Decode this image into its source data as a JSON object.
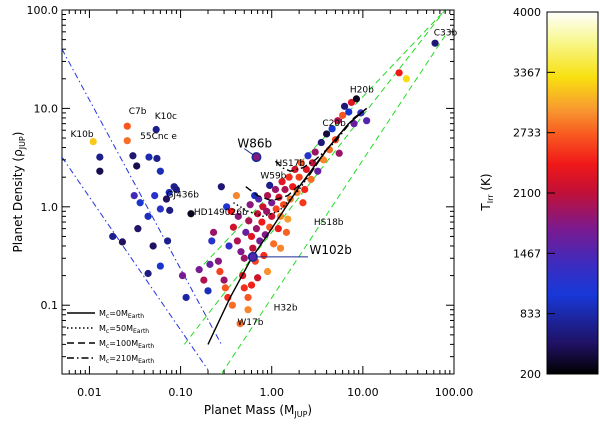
{
  "chart_data": {
    "type": "scatter",
    "xlabel": "Planet Mass (M",
    "xlabel_sub": "JUP",
    "xlabel_close": ")",
    "ylabel": "Planet Density (ρ",
    "ylabel_sub": "JUP",
    "ylabel_close": ")",
    "x_scale": "log",
    "y_scale": "log",
    "xlim": [
      0.005,
      100
    ],
    "ylim": [
      0.02,
      100
    ],
    "x_ticks": [
      {
        "v": 0.01,
        "label": "0.01"
      },
      {
        "v": 0.1,
        "label": "0.10"
      },
      {
        "v": 1,
        "label": "1.00"
      },
      {
        "v": 10,
        "label": "10.00"
      },
      {
        "v": 100,
        "label": "100.00"
      }
    ],
    "y_ticks": [
      {
        "v": 0.1,
        "label": "0.1"
      },
      {
        "v": 1,
        "label": "1.0"
      },
      {
        "v": 10,
        "label": "10.0"
      },
      {
        "v": 100,
        "label": "100.0"
      }
    ],
    "grid": false,
    "colorbar": {
      "label": "T",
      "label_sub": "Irr",
      "label_unit": "(K)",
      "range": [
        200,
        4000
      ],
      "ticks": [
        "200",
        "833",
        "1467",
        "2100",
        "2733",
        "3367",
        "4000"
      ]
    },
    "legend": {
      "position": "bottom-left",
      "entries": [
        {
          "text": "M",
          "sub": "c",
          "rest": "=0M",
          "sub2": "Earth",
          "style": "solid"
        },
        {
          "text": "M",
          "sub": "c",
          "rest": "=50M",
          "sub2": "Earth",
          "style": "dotted"
        },
        {
          "text": "M",
          "sub": "c",
          "rest": "=100M",
          "sub2": "Earth",
          "style": "dashed"
        },
        {
          "text": "M",
          "sub": "c",
          "rest": "=210M",
          "sub2": "Earth",
          "style": "dashdot"
        }
      ]
    },
    "annotations": [
      {
        "text": "C33b",
        "x": 60,
        "y": 55
      },
      {
        "text": "H20b",
        "x": 7.2,
        "y": 14.5
      },
      {
        "text": "C20b",
        "x": 3.6,
        "y": 6.6
      },
      {
        "text": "C7b",
        "x": 0.027,
        "y": 8.8
      },
      {
        "text": "K10c",
        "x": 0.052,
        "y": 7.8
      },
      {
        "text": "55Cnc e",
        "x": 0.036,
        "y": 4.9
      },
      {
        "text": "K10b",
        "x": 0.0062,
        "y": 5.1
      },
      {
        "text": "W86b",
        "x": 0.42,
        "y": 4.0,
        "big": true
      },
      {
        "text": "HS17b",
        "x": 1.1,
        "y": 2.6
      },
      {
        "text": "W59b",
        "x": 0.75,
        "y": 1.95
      },
      {
        "text": "GJ436b",
        "x": 0.07,
        "y": 1.25
      },
      {
        "text": "HD149026b",
        "x": 0.14,
        "y": 0.83
      },
      {
        "text": "HS18b",
        "x": 2.9,
        "y": 0.65
      },
      {
        "text": "W102b",
        "x": 2.6,
        "y": 0.33,
        "big": true
      },
      {
        "text": "H32b",
        "x": 1.05,
        "y": 0.088
      },
      {
        "text": "W17b",
        "x": 0.42,
        "y": 0.063
      }
    ],
    "guide_lines": [
      {
        "style": "blue-dashdot",
        "points": [
          [
            0.005,
            40
          ],
          [
            0.28,
            0.04
          ]
        ]
      },
      {
        "style": "blue-dashdot",
        "points": [
          [
            0.005,
            3.2
          ],
          [
            0.2,
            0.022
          ]
        ]
      },
      {
        "style": "green-dashed",
        "points": [
          [
            0.11,
            0.04
          ],
          [
            80,
            100
          ]
        ]
      },
      {
        "style": "green-dashed",
        "points": [
          [
            0.18,
            0.26
          ],
          [
            80,
            100
          ]
        ]
      },
      {
        "style": "green-dashed",
        "points": [
          [
            0.28,
            0.02
          ],
          [
            80,
            55
          ]
        ]
      }
    ],
    "model_curves": [
      {
        "style": "solid",
        "points": [
          [
            0.2,
            0.04
          ],
          [
            0.35,
            0.12
          ],
          [
            0.6,
            0.3
          ],
          [
            1,
            0.6
          ],
          [
            2,
            1.6
          ],
          [
            4,
            3.8
          ],
          [
            7,
            7
          ],
          [
            11,
            10
          ]
        ]
      },
      {
        "style": "dotted",
        "points": [
          [
            0.38,
            1.1
          ],
          [
            0.55,
            0.9
          ],
          [
            0.8,
            0.8
          ],
          [
            1.2,
            0.9
          ],
          [
            2,
            1.5
          ],
          [
            4,
            3.8
          ],
          [
            7,
            7
          ],
          [
            11,
            10
          ]
        ]
      },
      {
        "style": "dashed",
        "points": [
          [
            0.52,
            1.6
          ],
          [
            0.7,
            1.3
          ],
          [
            1,
            1.15
          ],
          [
            1.5,
            1.3
          ],
          [
            2.5,
            2
          ],
          [
            4,
            3.8
          ],
          [
            7,
            7
          ],
          [
            11,
            10
          ]
        ]
      },
      {
        "style": "dashdot",
        "points": [
          [
            1.1,
            2.9
          ],
          [
            1.3,
            2.5
          ],
          [
            1.6,
            2.3
          ],
          [
            2.2,
            2.5
          ],
          [
            3,
            3
          ],
          [
            5,
            4.6
          ],
          [
            8,
            8
          ],
          [
            11,
            10
          ]
        ]
      }
    ],
    "highlight_markers": [
      {
        "name": "W86b",
        "x": 0.68,
        "y": 3.2,
        "t": 1800,
        "pointer": [
          0.5,
          3.9
        ]
      },
      {
        "name": "W102b",
        "x": 0.62,
        "y": 0.31,
        "t": 1500,
        "pointer": [
          2.5,
          0.31
        ]
      }
    ],
    "series": [
      {
        "points": [
          {
            "x": 0.011,
            "y": 4.6,
            "t": 3200
          },
          {
            "x": 0.026,
            "y": 6.6,
            "t": 2700
          },
          {
            "x": 0.054,
            "y": 6.1,
            "t": 700
          },
          {
            "x": 0.026,
            "y": 4.7,
            "t": 2800
          },
          {
            "x": 0.013,
            "y": 3.2,
            "t": 700
          },
          {
            "x": 0.03,
            "y": 3.3,
            "t": 600
          },
          {
            "x": 0.045,
            "y": 3.2,
            "t": 850
          },
          {
            "x": 0.055,
            "y": 3.1,
            "t": 700
          },
          {
            "x": 0.013,
            "y": 2.3,
            "t": 450
          },
          {
            "x": 0.033,
            "y": 2.6,
            "t": 450
          },
          {
            "x": 0.06,
            "y": 2.3,
            "t": 900
          },
          {
            "x": 0.07,
            "y": 1.2,
            "t": 500
          },
          {
            "x": 0.085,
            "y": 1.6,
            "t": 700
          },
          {
            "x": 0.09,
            "y": 1.5,
            "t": 650
          },
          {
            "x": 0.075,
            "y": 1.4,
            "t": 900
          },
          {
            "x": 0.052,
            "y": 1.3,
            "t": 1200
          },
          {
            "x": 0.031,
            "y": 1.3,
            "t": 1400
          },
          {
            "x": 0.036,
            "y": 1.1,
            "t": 1000
          },
          {
            "x": 0.06,
            "y": 0.95,
            "t": 1200
          },
          {
            "x": 0.076,
            "y": 0.92,
            "t": 650
          },
          {
            "x": 0.044,
            "y": 0.8,
            "t": 900
          },
          {
            "x": 0.034,
            "y": 0.6,
            "t": 550
          },
          {
            "x": 0.018,
            "y": 0.5,
            "t": 700
          },
          {
            "x": 0.023,
            "y": 0.44,
            "t": 500
          },
          {
            "x": 0.05,
            "y": 0.4,
            "t": 500
          },
          {
            "x": 0.06,
            "y": 0.25,
            "t": 1000
          },
          {
            "x": 0.044,
            "y": 0.21,
            "t": 650
          },
          {
            "x": 0.072,
            "y": 0.45,
            "t": 700
          },
          {
            "x": 0.115,
            "y": 0.12,
            "t": 800
          },
          {
            "x": 0.105,
            "y": 0.2,
            "t": 1700
          },
          {
            "x": 0.13,
            "y": 0.85,
            "t": 300
          },
          {
            "x": 0.16,
            "y": 0.23,
            "t": 1700
          },
          {
            "x": 0.18,
            "y": 0.18,
            "t": 2000
          },
          {
            "x": 0.2,
            "y": 0.14,
            "t": 900
          },
          {
            "x": 0.21,
            "y": 0.26,
            "t": 1600
          },
          {
            "x": 0.23,
            "y": 0.55,
            "t": 1900
          },
          {
            "x": 0.22,
            "y": 0.45,
            "t": 1200
          },
          {
            "x": 0.26,
            "y": 0.28,
            "t": 1800
          },
          {
            "x": 0.27,
            "y": 0.22,
            "t": 2600
          },
          {
            "x": 0.3,
            "y": 0.18,
            "t": 1900
          },
          {
            "x": 0.31,
            "y": 0.15,
            "t": 2700
          },
          {
            "x": 0.33,
            "y": 0.12,
            "t": 2500
          },
          {
            "x": 0.37,
            "y": 0.1,
            "t": 2800
          },
          {
            "x": 0.34,
            "y": 0.4,
            "t": 1300
          },
          {
            "x": 0.38,
            "y": 0.62,
            "t": 2200
          },
          {
            "x": 0.36,
            "y": 0.9,
            "t": 2400
          },
          {
            "x": 0.41,
            "y": 1.3,
            "t": 2900
          },
          {
            "x": 0.43,
            "y": 0.8,
            "t": 1800
          },
          {
            "x": 0.42,
            "y": 0.45,
            "t": 2000
          },
          {
            "x": 0.46,
            "y": 0.35,
            "t": 1750
          },
          {
            "x": 0.5,
            "y": 0.3,
            "t": 1900
          },
          {
            "x": 0.48,
            "y": 0.2,
            "t": 2300
          },
          {
            "x": 0.5,
            "y": 0.15,
            "t": 2500
          },
          {
            "x": 0.55,
            "y": 0.12,
            "t": 2700
          },
          {
            "x": 0.55,
            "y": 0.09,
            "t": 2900
          },
          {
            "x": 0.45,
            "y": 0.065,
            "t": 2800
          },
          {
            "x": 0.52,
            "y": 0.55,
            "t": 1600
          },
          {
            "x": 0.56,
            "y": 0.72,
            "t": 2000
          },
          {
            "x": 0.58,
            "y": 1.05,
            "t": 1800
          },
          {
            "x": 0.6,
            "y": 0.5,
            "t": 2300
          },
          {
            "x": 0.62,
            "y": 0.38,
            "t": 2100
          },
          {
            "x": 0.66,
            "y": 0.28,
            "t": 2600
          },
          {
            "x": 0.68,
            "y": 0.6,
            "t": 1900
          },
          {
            "x": 0.7,
            "y": 0.85,
            "t": 2100
          },
          {
            "x": 0.72,
            "y": 1.2,
            "t": 1500
          },
          {
            "x": 0.74,
            "y": 0.45,
            "t": 1700
          },
          {
            "x": 0.78,
            "y": 0.7,
            "t": 2400
          },
          {
            "x": 0.8,
            "y": 1.0,
            "t": 2200
          },
          {
            "x": 0.82,
            "y": 0.32,
            "t": 2500
          },
          {
            "x": 0.85,
            "y": 0.52,
            "t": 1750
          },
          {
            "x": 0.88,
            "y": 0.9,
            "t": 1900
          },
          {
            "x": 0.9,
            "y": 1.3,
            "t": 2000
          },
          {
            "x": 0.95,
            "y": 0.62,
            "t": 2700
          },
          {
            "x": 1.0,
            "y": 0.8,
            "t": 2150
          },
          {
            "x": 1.0,
            "y": 1.1,
            "t": 1700
          },
          {
            "x": 1.05,
            "y": 0.42,
            "t": 2800
          },
          {
            "x": 1.1,
            "y": 1.5,
            "t": 1900
          },
          {
            "x": 1.12,
            "y": 0.95,
            "t": 2600
          },
          {
            "x": 1.18,
            "y": 0.6,
            "t": 2400
          },
          {
            "x": 1.2,
            "y": 1.25,
            "t": 2200
          },
          {
            "x": 1.25,
            "y": 0.8,
            "t": 2900
          },
          {
            "x": 1.3,
            "y": 1.8,
            "t": 2300
          },
          {
            "x": 1.35,
            "y": 1.05,
            "t": 2650
          },
          {
            "x": 1.4,
            "y": 1.5,
            "t": 2000
          },
          {
            "x": 1.45,
            "y": 0.55,
            "t": 2750
          },
          {
            "x": 1.55,
            "y": 2.0,
            "t": 2500
          },
          {
            "x": 1.6,
            "y": 1.2,
            "t": 2850
          },
          {
            "x": 1.7,
            "y": 1.6,
            "t": 2400
          },
          {
            "x": 1.8,
            "y": 2.4,
            "t": 2200
          },
          {
            "x": 1.9,
            "y": 1.4,
            "t": 2900
          },
          {
            "x": 2.0,
            "y": 2.0,
            "t": 2600
          },
          {
            "x": 2.1,
            "y": 2.8,
            "t": 2700
          },
          {
            "x": 2.2,
            "y": 1.1,
            "t": 2550
          },
          {
            "x": 2.4,
            "y": 2.4,
            "t": 2300
          },
          {
            "x": 2.5,
            "y": 3.3,
            "t": 1200
          },
          {
            "x": 2.7,
            "y": 1.9,
            "t": 2800
          },
          {
            "x": 2.8,
            "y": 2.8,
            "t": 2100
          },
          {
            "x": 3.0,
            "y": 3.6,
            "t": 1900
          },
          {
            "x": 3.2,
            "y": 2.3,
            "t": 1600
          },
          {
            "x": 3.5,
            "y": 4.5,
            "t": 600
          },
          {
            "x": 3.7,
            "y": 3.0,
            "t": 2900
          },
          {
            "x": 4.0,
            "y": 5.5,
            "t": 400
          },
          {
            "x": 4.3,
            "y": 3.8,
            "t": 2800
          },
          {
            "x": 4.6,
            "y": 6.2,
            "t": 1000
          },
          {
            "x": 5.0,
            "y": 4.8,
            "t": 2600
          },
          {
            "x": 5.3,
            "y": 7.5,
            "t": 2000
          },
          {
            "x": 5.5,
            "y": 3.5,
            "t": 1900
          },
          {
            "x": 6.0,
            "y": 8.5,
            "t": 2700
          },
          {
            "x": 6.3,
            "y": 10.5,
            "t": 600
          },
          {
            "x": 7.0,
            "y": 9.2,
            "t": 1000
          },
          {
            "x": 7.5,
            "y": 11.5,
            "t": 2300
          },
          {
            "x": 8.0,
            "y": 7.0,
            "t": 1600
          },
          {
            "x": 8.5,
            "y": 12.5,
            "t": 300
          },
          {
            "x": 9.5,
            "y": 9.0,
            "t": 1300
          },
          {
            "x": 11.0,
            "y": 7.5,
            "t": 1500
          },
          {
            "x": 25.0,
            "y": 23.0,
            "t": 2400
          },
          {
            "x": 30.0,
            "y": 20.0,
            "t": 3300
          },
          {
            "x": 62.0,
            "y": 46.0,
            "t": 600
          },
          {
            "x": 0.28,
            "y": 1.6,
            "t": 600
          },
          {
            "x": 0.32,
            "y": 1.0,
            "t": 1100
          },
          {
            "x": 0.95,
            "y": 1.65,
            "t": 700
          },
          {
            "x": 0.65,
            "y": 1.3,
            "t": 900
          },
          {
            "x": 1.5,
            "y": 0.75,
            "t": 3000
          },
          {
            "x": 2.3,
            "y": 1.5,
            "t": 2450
          },
          {
            "x": 1.25,
            "y": 0.38,
            "t": 2900
          },
          {
            "x": 0.9,
            "y": 0.22,
            "t": 2950
          },
          {
            "x": 0.7,
            "y": 0.19,
            "t": 2200
          },
          {
            "x": 0.6,
            "y": 0.16,
            "t": 2450
          }
        ]
      }
    ]
  }
}
